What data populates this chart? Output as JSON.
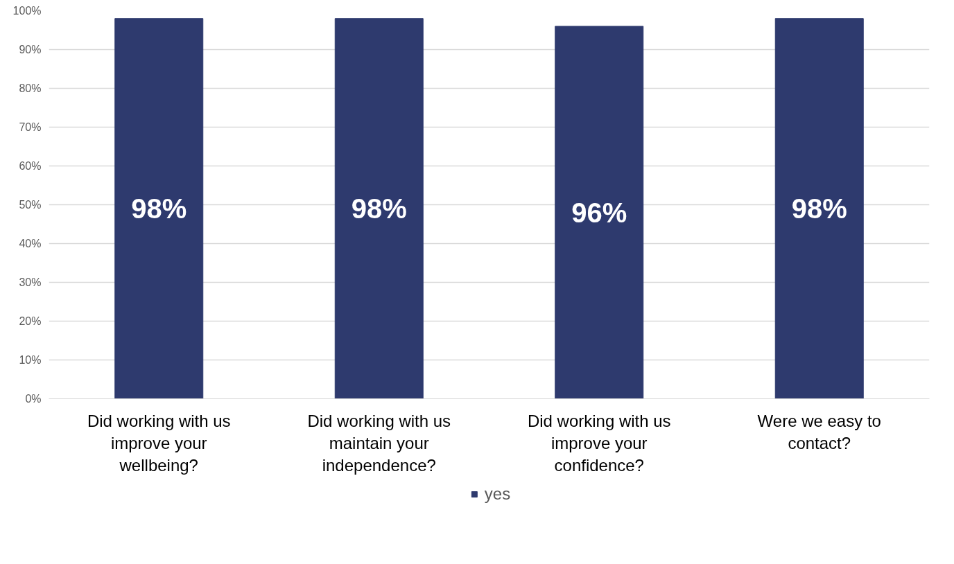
{
  "chart_data": {
    "type": "bar",
    "categories": [
      "Did working with us improve your wellbeing?",
      "Did working with us maintain your independence?",
      "Did working with us improve your confidence?",
      "Were we easy to contact?"
    ],
    "series": [
      {
        "name": "yes",
        "color": "#2e3a6e",
        "values": [
          98,
          98,
          96,
          98
        ]
      }
    ],
    "ylim": [
      0,
      100
    ],
    "yticks": [
      {
        "value": 0,
        "label": "0%"
      },
      {
        "value": 10,
        "label": "10%"
      },
      {
        "value": 20,
        "label": "20%"
      },
      {
        "value": 30,
        "label": "30%"
      },
      {
        "value": 40,
        "label": "40%"
      },
      {
        "value": 50,
        "label": "50%"
      },
      {
        "value": 60,
        "label": "60%"
      },
      {
        "value": 70,
        "label": "70%"
      },
      {
        "value": 80,
        "label": "80%"
      },
      {
        "value": 90,
        "label": "90%"
      },
      {
        "value": 100,
        "label": "100%"
      }
    ],
    "value_labels": [
      "98%",
      "98%",
      "96%",
      "98%"
    ],
    "grid": "y",
    "legend": "bottom"
  }
}
